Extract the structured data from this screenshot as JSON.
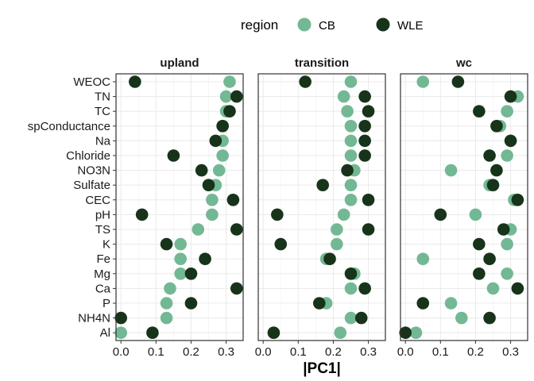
{
  "chart_data": {
    "type": "scatter",
    "xlabel": "|PC1|",
    "legend": {
      "title": "region",
      "placement": "top",
      "entries": [
        {
          "name": "CB",
          "color": "#73b894"
        },
        {
          "name": "WLE",
          "color": "#17341a"
        }
      ]
    },
    "xlim": [
      0,
      0.34
    ],
    "xticks": [
      "0.0",
      "0.1",
      "0.2",
      "0.3"
    ],
    "xtick_values": [
      0,
      0.1,
      0.2,
      0.3
    ],
    "grid": true,
    "categories": [
      "WEOC",
      "TN",
      "TC",
      "spConductance",
      "Na",
      "Chloride",
      "NO3N",
      "Sulfate",
      "CEC",
      "pH",
      "TS",
      "K",
      "Fe",
      "Mg",
      "Ca",
      "P",
      "NH4N",
      "Al"
    ],
    "panels": [
      {
        "title": "upland",
        "CB": [
          0.31,
          0.3,
          0.3,
          0.29,
          0.29,
          0.29,
          0.28,
          0.27,
          0.26,
          0.26,
          0.22,
          0.17,
          0.17,
          0.17,
          0.14,
          0.13,
          0.13,
          0.0
        ],
        "WLE": [
          0.04,
          0.33,
          0.31,
          0.29,
          0.27,
          0.15,
          0.23,
          0.25,
          0.32,
          0.06,
          0.33,
          0.13,
          0.24,
          0.2,
          0.33,
          0.2,
          0.0,
          0.09
        ]
      },
      {
        "title": "transition",
        "CB": [
          0.25,
          0.23,
          0.24,
          0.25,
          0.25,
          0.25,
          0.26,
          0.25,
          0.25,
          0.23,
          0.21,
          0.21,
          0.18,
          0.26,
          0.25,
          0.18,
          0.25,
          0.22
        ],
        "WLE": [
          0.12,
          0.29,
          0.3,
          0.29,
          0.29,
          0.29,
          0.24,
          0.17,
          0.3,
          0.04,
          0.3,
          0.05,
          0.19,
          0.25,
          0.29,
          0.16,
          0.28,
          0.03
        ]
      },
      {
        "title": "wc",
        "CB": [
          0.05,
          0.32,
          0.29,
          0.27,
          0.3,
          0.29,
          0.13,
          0.24,
          0.31,
          0.2,
          0.3,
          0.29,
          0.05,
          0.29,
          0.25,
          0.13,
          0.16,
          0.03
        ],
        "WLE": [
          0.15,
          0.3,
          0.21,
          0.26,
          0.3,
          0.24,
          0.26,
          0.25,
          0.32,
          0.1,
          0.28,
          0.21,
          0.24,
          0.21,
          0.32,
          0.05,
          0.24,
          0.0
        ]
      }
    ]
  }
}
